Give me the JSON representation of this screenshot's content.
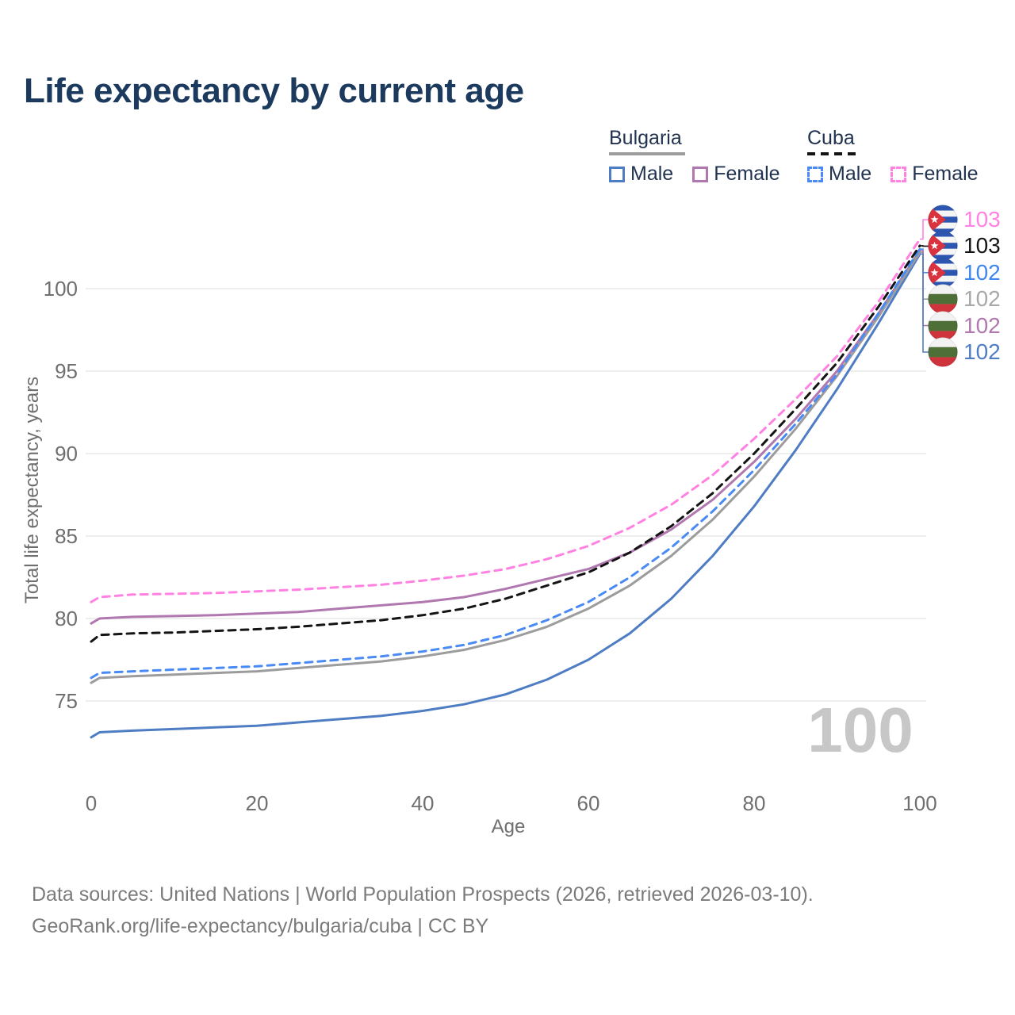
{
  "title": "Life expectancy by current age",
  "legend": {
    "groups": [
      {
        "label": "Bulgaria",
        "line_style": "solid",
        "underline_color": "#9c9c9c",
        "items": [
          {
            "label": "Male",
            "color": "#4f7dc3"
          },
          {
            "label": "Female",
            "color": "#b178af"
          }
        ]
      },
      {
        "label": "Cuba",
        "line_style": "dashed",
        "underline_color": "#141414",
        "items": [
          {
            "label": "Male",
            "color": "#4a8af4"
          },
          {
            "label": "Female",
            "color": "#ff82e2"
          }
        ]
      }
    ]
  },
  "chart_data": {
    "type": "line",
    "title": "Life expectancy by current age",
    "xlabel": "Age",
    "ylabel": "Total life expectancy, years",
    "x_ticks": [
      0,
      20,
      40,
      60,
      80,
      100
    ],
    "y_ticks": [
      75,
      80,
      85,
      90,
      95,
      100
    ],
    "xlim": [
      0,
      100
    ],
    "ylim": [
      72,
      104
    ],
    "grid": "horizontal-only",
    "legend_position": "top-right",
    "watermark": "100",
    "x": [
      0,
      1,
      5,
      10,
      15,
      20,
      25,
      30,
      35,
      40,
      45,
      50,
      55,
      60,
      65,
      70,
      75,
      80,
      85,
      90,
      95,
      100
    ],
    "series": [
      {
        "key": "bulgaria_male",
        "name": "Bulgaria Male",
        "country": "bulgaria",
        "sex": "male",
        "color": "#4f7dc3",
        "dash": "solid",
        "values": [
          72.8,
          73.1,
          73.2,
          73.3,
          73.4,
          73.5,
          73.7,
          73.9,
          74.1,
          74.4,
          74.8,
          75.4,
          76.3,
          77.5,
          79.1,
          81.2,
          83.8,
          86.8,
          90.2,
          93.9,
          97.9,
          102.1
        ]
      },
      {
        "key": "bulgaria_female",
        "name": "Bulgaria Female",
        "country": "bulgaria",
        "sex": "female",
        "color": "#b178af",
        "dash": "solid",
        "values": [
          79.7,
          80.0,
          80.1,
          80.15,
          80.2,
          80.3,
          80.4,
          80.6,
          80.8,
          81.0,
          81.3,
          81.8,
          82.4,
          83.0,
          84.0,
          85.4,
          87.2,
          89.5,
          92.1,
          95.0,
          98.5,
          102.3
        ]
      },
      {
        "key": "bulgaria_total",
        "name": "Bulgaria Both sexes",
        "country": "bulgaria",
        "sex": "both",
        "color": "#9c9c9c",
        "dash": "solid",
        "values": [
          76.1,
          76.4,
          76.5,
          76.6,
          76.7,
          76.8,
          77.0,
          77.2,
          77.4,
          77.7,
          78.1,
          78.7,
          79.5,
          80.6,
          82.0,
          83.8,
          86.0,
          88.6,
          91.5,
          94.7,
          98.3,
          102.2
        ]
      },
      {
        "key": "cuba_male",
        "name": "Cuba Male",
        "country": "cuba",
        "sex": "male",
        "color": "#4a8af4",
        "dash": "dashed",
        "values": [
          76.4,
          76.7,
          76.8,
          76.9,
          77.0,
          77.1,
          77.3,
          77.5,
          77.7,
          78.0,
          78.4,
          79.0,
          79.9,
          81.0,
          82.5,
          84.3,
          86.5,
          89.0,
          91.8,
          94.8,
          98.5,
          102.4
        ]
      },
      {
        "key": "cuba_total",
        "name": "Cuba Both sexes",
        "country": "cuba",
        "sex": "both",
        "color": "#141414",
        "dash": "dashed",
        "values": [
          78.6,
          79.0,
          79.1,
          79.15,
          79.25,
          79.35,
          79.5,
          79.7,
          79.9,
          80.2,
          80.6,
          81.2,
          82.0,
          82.8,
          84.0,
          85.6,
          87.6,
          90.0,
          92.7,
          95.5,
          98.9,
          102.6
        ]
      },
      {
        "key": "cuba_female",
        "name": "Cuba Female",
        "country": "cuba",
        "sex": "female",
        "color": "#ff82e2",
        "dash": "dashed",
        "values": [
          81.0,
          81.3,
          81.45,
          81.5,
          81.55,
          81.65,
          81.75,
          81.9,
          82.05,
          82.3,
          82.6,
          83.0,
          83.6,
          84.4,
          85.5,
          86.9,
          88.7,
          90.9,
          93.3,
          95.9,
          99.2,
          103.0
        ]
      }
    ],
    "end_labels": [
      {
        "series": "cuba_female",
        "value": "103",
        "flag": "cuba",
        "color": "#ff82e2"
      },
      {
        "series": "cuba_total",
        "value": "103",
        "flag": "cuba",
        "color": "#141414"
      },
      {
        "series": "cuba_male",
        "value": "102",
        "flag": "cuba",
        "color": "#3f86ee"
      },
      {
        "series": "bulgaria_total",
        "value": "102",
        "flag": "bulgaria",
        "color": "#a8a8a8"
      },
      {
        "series": "bulgaria_female",
        "value": "102",
        "flag": "bulgaria",
        "color": "#b178af"
      },
      {
        "series": "bulgaria_male",
        "value": "102",
        "flag": "bulgaria",
        "color": "#4f7dc3"
      }
    ]
  },
  "footer": {
    "line1": "Data sources: United Nations | World Population Prospects (2026, retrieved 2026-03-10).",
    "line2": "GeoRank.org/life-expectancy/bulgaria/cuba | CC BY"
  }
}
